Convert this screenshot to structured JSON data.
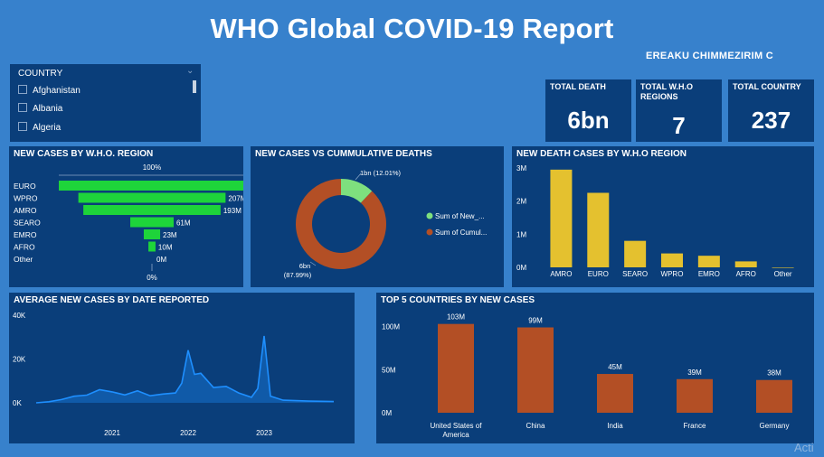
{
  "header": {
    "title": "WHO Global COVID-19 Report",
    "author": "EREAKU CHIMMEZIRIM C"
  },
  "slicer": {
    "title": "COUNTRY",
    "items": [
      "Afghanistan",
      "Albania",
      "Algeria"
    ]
  },
  "kpis": [
    {
      "label": "TOTAL DEATH",
      "value": "6bn"
    },
    {
      "label": "TOTAL W.H.O REGIONS",
      "value": "7"
    },
    {
      "label": "TOTAL COUNTRY",
      "value": "237"
    }
  ],
  "funnel": {
    "title": "NEW CASES BY W.H.O. REGION",
    "top_label": "100%",
    "bottom_label": "0%",
    "rows": [
      {
        "label": "EURO",
        "value": 262,
        "value_label": ""
      },
      {
        "label": "WPRO",
        "value": 207,
        "value_label": "207M"
      },
      {
        "label": "AMRO",
        "value": 193,
        "value_label": "193M"
      },
      {
        "label": "SEARO",
        "value": 61,
        "value_label": "61M"
      },
      {
        "label": "EMRO",
        "value": 23,
        "value_label": "23M"
      },
      {
        "label": "AFRO",
        "value": 10,
        "value_label": "10M"
      },
      {
        "label": "Other",
        "value": 0,
        "value_label": "0M"
      }
    ]
  },
  "donut": {
    "title": "NEW CASES VS CUMMULATIVE DEATHS",
    "slices": [
      {
        "name": "Sum of New_...",
        "pct": 12.01,
        "label": "1bn (12.01%)",
        "color": "#7ee07e"
      },
      {
        "name": "Sum of Cumul...",
        "pct": 87.99,
        "label": "6bn\n(87.99%)",
        "color": "#b34f25"
      }
    ]
  },
  "death_chart": {
    "title": "NEW DEATH CASES BY W.H.O REGION",
    "color": "#e4c12f",
    "categories": [
      "AMRO",
      "EURO",
      "SEARO",
      "WPRO",
      "EMRO",
      "AFRO",
      "Other"
    ],
    "values": [
      2.95,
      2.25,
      0.8,
      0.42,
      0.35,
      0.18,
      0.0
    ],
    "ticks": [
      "0M",
      "1M",
      "2M",
      "3M"
    ],
    "ylim": [
      0,
      3
    ]
  },
  "line_chart": {
    "title": "AVERAGE NEW CASES BY DATE REPORTED",
    "color": "#1e8fff",
    "y_ticks": [
      "0K",
      "20K",
      "40K"
    ],
    "x_ticks": [
      "2021",
      "2022",
      "2023"
    ],
    "ylim": [
      0,
      40000
    ],
    "points": [
      [
        "2020-01",
        0
      ],
      [
        "2020-03",
        500
      ],
      [
        "2020-05",
        1500
      ],
      [
        "2020-07",
        3000
      ],
      [
        "2020-09",
        3500
      ],
      [
        "2020-11",
        6000
      ],
      [
        "2021-01",
        5000
      ],
      [
        "2021-03",
        3600
      ],
      [
        "2021-05",
        5500
      ],
      [
        "2021-07",
        3200
      ],
      [
        "2021-09",
        4000
      ],
      [
        "2021-11",
        4500
      ],
      [
        "2021-12",
        9000
      ],
      [
        "2022-01",
        24000
      ],
      [
        "2022-02",
        13000
      ],
      [
        "2022-03",
        13500
      ],
      [
        "2022-05",
        7000
      ],
      [
        "2022-07",
        7500
      ],
      [
        "2022-09",
        4500
      ],
      [
        "2022-11",
        2500
      ],
      [
        "2022-12",
        6500
      ],
      [
        "2023-01",
        30500
      ],
      [
        "2023-02",
        3000
      ],
      [
        "2023-04",
        1200
      ],
      [
        "2023-08",
        800
      ],
      [
        "2023-12",
        600
      ]
    ]
  },
  "top5": {
    "title": "TOP 5 COUNTRIES BY NEW CASES",
    "color": "#b34f25",
    "categories": [
      "United States of America",
      "China",
      "India",
      "France",
      "Germany"
    ],
    "values": [
      103,
      99,
      45,
      39,
      38
    ],
    "value_labels": [
      "103M",
      "99M",
      "45M",
      "39M",
      "38M"
    ],
    "ticks": [
      "0M",
      "50M",
      "100M"
    ],
    "ylim": [
      0,
      110
    ]
  },
  "watermark": "Acti"
}
